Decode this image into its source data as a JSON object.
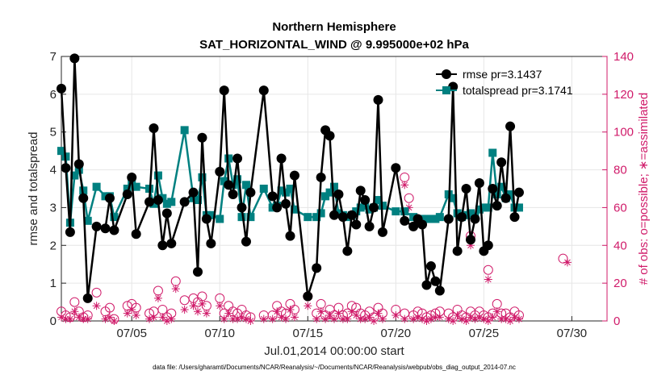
{
  "colors": {
    "rmse": "#000000",
    "spread": "#008080",
    "obs": "#d01b6a",
    "grid": "#e6e6e6",
    "axis": "#262626"
  },
  "chart_data": {
    "type": "line",
    "title_line1": "Northern Hemisphere",
    "title_line2": "SAT_HORIZONTAL_WIND @ 9.995000e+02 hPa",
    "xlabel": "Jul.01,2014 00:00:00 start",
    "ylabel_left": "rmse and totalspread",
    "ylabel_right": "# of obs: o=possible; ∗=assimilated",
    "footnote": "data file: /Users/gharamti/Documents/NCAR/Reanalysis/~/Documents/NCAR/Reanalysis/webpub/obs_diag_output_2014-07.nc",
    "xlim": [
      1.0,
      32.0
    ],
    "ylim_left": [
      0,
      7
    ],
    "ylim_right": [
      0,
      140
    ],
    "x_ticks": [
      5,
      10,
      15,
      20,
      25,
      30
    ],
    "x_tick_labels": [
      "07/05",
      "07/10",
      "07/15",
      "07/20",
      "07/25",
      "07/30"
    ],
    "y_ticks_left": [
      "0",
      "1",
      "2",
      "3",
      "4",
      "5",
      "6",
      "7"
    ],
    "y_ticks_right": [
      "0",
      "20",
      "40",
      "60",
      "80",
      "100",
      "120",
      "140"
    ],
    "legend": {
      "rmse_label": "rmse pr=3.1437",
      "spread_label": "totalspread pr=3.1741",
      "location": "top-right"
    },
    "rmse": [
      [
        1.0,
        6.15
      ],
      [
        1.25,
        4.05
      ],
      [
        1.5,
        2.35
      ],
      [
        1.75,
        6.95
      ],
      [
        2.0,
        4.15
      ],
      [
        2.25,
        3.25
      ],
      [
        2.5,
        0.6
      ],
      [
        3.0,
        2.5
      ],
      [
        3.5,
        2.45
      ],
      [
        3.75,
        3.25
      ],
      [
        4.0,
        2.4
      ],
      [
        4.75,
        3.35
      ],
      [
        5.0,
        3.8
      ],
      [
        5.25,
        2.3
      ],
      [
        6.0,
        3.15
      ],
      [
        6.25,
        5.1
      ],
      [
        6.5,
        3.2
      ],
      [
        6.75,
        2.0
      ],
      [
        7.0,
        2.85
      ],
      [
        7.25,
        2.05
      ],
      [
        8.0,
        3.15
      ],
      [
        8.5,
        3.4
      ],
      [
        8.75,
        1.3
      ],
      [
        9.0,
        4.85
      ],
      [
        9.25,
        2.7
      ],
      [
        9.5,
        2.05
      ],
      [
        10.0,
        3.95
      ],
      [
        10.25,
        6.1
      ],
      [
        10.5,
        3.6
      ],
      [
        10.75,
        3.35
      ],
      [
        11.0,
        4.3
      ],
      [
        11.25,
        3.0
      ],
      [
        11.5,
        2.1
      ],
      [
        11.75,
        3.4
      ],
      [
        12.5,
        6.1
      ],
      [
        13.0,
        3.3
      ],
      [
        13.25,
        3.0
      ],
      [
        13.5,
        4.3
      ],
      [
        13.75,
        3.1
      ],
      [
        14.0,
        2.25
      ],
      [
        14.25,
        3.85
      ],
      [
        15.0,
        0.65
      ],
      [
        15.5,
        1.4
      ],
      [
        15.75,
        3.8
      ],
      [
        16.0,
        5.05
      ],
      [
        16.25,
        4.9
      ],
      [
        16.5,
        2.8
      ],
      [
        16.75,
        3.35
      ],
      [
        17.0,
        2.75
      ],
      [
        17.25,
        1.85
      ],
      [
        17.5,
        2.8
      ],
      [
        17.75,
        2.55
      ],
      [
        18.0,
        3.45
      ],
      [
        18.25,
        3.2
      ],
      [
        18.5,
        2.5
      ],
      [
        18.75,
        3.0
      ],
      [
        19.0,
        5.85
      ],
      [
        19.25,
        2.35
      ],
      [
        20.0,
        4.05
      ],
      [
        20.5,
        2.65
      ],
      [
        21.0,
        2.5
      ],
      [
        21.25,
        2.7
      ],
      [
        21.5,
        2.55
      ],
      [
        21.75,
        0.95
      ],
      [
        22.0,
        1.45
      ],
      [
        22.25,
        1.05
      ],
      [
        22.5,
        0.8
      ],
      [
        23.0,
        2.7
      ],
      [
        23.25,
        6.2
      ],
      [
        23.5,
        1.85
      ],
      [
        23.75,
        2.75
      ],
      [
        24.0,
        3.5
      ],
      [
        24.25,
        2.15
      ],
      [
        24.5,
        2.7
      ],
      [
        24.75,
        3.65
      ],
      [
        25.0,
        1.85
      ],
      [
        25.25,
        2.0
      ],
      [
        25.5,
        3.5
      ],
      [
        25.75,
        3.05
      ],
      [
        26.0,
        4.2
      ],
      [
        26.25,
        3.25
      ],
      [
        26.5,
        5.15
      ],
      [
        26.75,
        2.75
      ],
      [
        27.0,
        3.4
      ]
    ],
    "totalspread": [
      [
        1.0,
        4.5
      ],
      [
        1.25,
        4.35
      ],
      [
        1.5,
        2.6
      ],
      [
        1.75,
        3.85
      ],
      [
        2.0,
        4.0
      ],
      [
        2.25,
        3.45
      ],
      [
        2.5,
        2.65
      ],
      [
        3.0,
        3.55
      ],
      [
        3.5,
        3.3
      ],
      [
        3.75,
        3.3
      ],
      [
        4.0,
        2.75
      ],
      [
        4.75,
        3.5
      ],
      [
        5.0,
        3.7
      ],
      [
        5.25,
        3.55
      ],
      [
        6.0,
        3.5
      ],
      [
        6.25,
        3.1
      ],
      [
        6.5,
        3.85
      ],
      [
        6.75,
        3.25
      ],
      [
        7.0,
        3.1
      ],
      [
        7.25,
        3.15
      ],
      [
        8.0,
        5.05
      ],
      [
        8.5,
        3.25
      ],
      [
        8.75,
        3.2
      ],
      [
        9.0,
        3.8
      ],
      [
        9.25,
        2.8
      ],
      [
        9.5,
        2.8
      ],
      [
        10.0,
        2.7
      ],
      [
        10.25,
        3.7
      ],
      [
        10.5,
        4.3
      ],
      [
        10.75,
        3.6
      ],
      [
        11.0,
        3.75
      ],
      [
        11.25,
        2.75
      ],
      [
        11.5,
        3.6
      ],
      [
        11.75,
        2.75
      ],
      [
        12.5,
        3.5
      ],
      [
        13.0,
        3.0
      ],
      [
        13.25,
        3.05
      ],
      [
        13.5,
        3.45
      ],
      [
        13.75,
        3.4
      ],
      [
        14.0,
        3.5
      ],
      [
        14.25,
        2.95
      ],
      [
        15.0,
        2.75
      ],
      [
        15.5,
        2.75
      ],
      [
        15.75,
        2.85
      ],
      [
        16.0,
        3.3
      ],
      [
        16.25,
        3.4
      ],
      [
        16.5,
        3.55
      ],
      [
        16.75,
        2.85
      ],
      [
        17.0,
        2.8
      ],
      [
        17.25,
        2.75
      ],
      [
        17.5,
        2.8
      ],
      [
        17.75,
        2.9
      ],
      [
        18.0,
        3.0
      ],
      [
        18.25,
        3.05
      ],
      [
        18.5,
        2.95
      ],
      [
        18.75,
        3.0
      ],
      [
        19.0,
        3.2
      ],
      [
        19.25,
        3.05
      ],
      [
        20.0,
        2.9
      ],
      [
        20.5,
        2.9
      ],
      [
        21.0,
        2.75
      ],
      [
        21.25,
        2.6
      ],
      [
        21.5,
        2.7
      ],
      [
        21.75,
        2.7
      ],
      [
        22.0,
        2.7
      ],
      [
        22.25,
        2.7
      ],
      [
        22.5,
        2.75
      ],
      [
        23.0,
        3.35
      ],
      [
        23.25,
        3.25
      ],
      [
        23.5,
        2.85
      ],
      [
        23.75,
        2.75
      ],
      [
        24.0,
        2.8
      ],
      [
        24.25,
        2.85
      ],
      [
        24.5,
        2.75
      ],
      [
        24.75,
        2.95
      ],
      [
        25.0,
        3.0
      ],
      [
        25.25,
        3.0
      ],
      [
        25.5,
        4.45
      ],
      [
        25.75,
        3.35
      ],
      [
        26.0,
        3.55
      ],
      [
        26.25,
        3.25
      ],
      [
        26.5,
        3.35
      ],
      [
        26.75,
        3.0
      ],
      [
        27.0,
        3.0
      ]
    ],
    "obs_possible": [
      [
        1.0,
        5
      ],
      [
        1.25,
        3
      ],
      [
        1.5,
        2
      ],
      [
        1.75,
        10
      ],
      [
        2.0,
        5
      ],
      [
        2.25,
        2
      ],
      [
        2.5,
        3
      ],
      [
        3.0,
        15
      ],
      [
        3.5,
        5
      ],
      [
        3.75,
        7
      ],
      [
        4.0,
        1
      ],
      [
        4.75,
        8
      ],
      [
        5.0,
        9
      ],
      [
        5.25,
        7
      ],
      [
        6.0,
        4
      ],
      [
        6.25,
        5
      ],
      [
        6.5,
        16
      ],
      [
        6.75,
        6
      ],
      [
        7.0,
        2
      ],
      [
        7.25,
        4
      ],
      [
        8.0,
        11
      ],
      [
        8.5,
        12
      ],
      [
        8.75,
        10
      ],
      [
        9.0,
        13
      ],
      [
        9.25,
        8
      ],
      [
        10.0,
        12
      ],
      [
        10.25,
        4
      ],
      [
        10.5,
        8
      ],
      [
        10.75,
        5
      ],
      [
        11.0,
        4
      ],
      [
        11.25,
        6
      ],
      [
        11.5,
        3
      ],
      [
        11.75,
        2
      ],
      [
        12.5,
        3
      ],
      [
        13.0,
        3
      ],
      [
        13.25,
        8
      ],
      [
        13.5,
        5
      ],
      [
        13.75,
        4
      ],
      [
        14.0,
        9
      ],
      [
        14.25,
        6
      ],
      [
        15.0,
        13
      ],
      [
        15.5,
        4
      ],
      [
        15.75,
        9
      ],
      [
        16.0,
        3
      ],
      [
        16.25,
        6
      ],
      [
        16.5,
        3
      ],
      [
        16.75,
        7
      ],
      [
        17.0,
        3
      ],
      [
        17.25,
        4
      ],
      [
        17.5,
        8
      ],
      [
        17.75,
        7
      ],
      [
        18.0,
        4
      ],
      [
        18.25,
        3
      ],
      [
        18.5,
        5
      ],
      [
        18.75,
        2
      ],
      [
        19.0,
        7
      ],
      [
        19.25,
        4
      ],
      [
        20.0,
        6
      ],
      [
        20.5,
        4
      ],
      [
        21.0,
        3
      ],
      [
        21.25,
        5
      ],
      [
        21.5,
        4
      ],
      [
        21.75,
        2
      ],
      [
        22.0,
        3
      ],
      [
        22.25,
        4
      ],
      [
        22.5,
        5
      ],
      [
        23.0,
        4
      ],
      [
        23.25,
        2
      ],
      [
        23.5,
        6
      ],
      [
        23.75,
        3
      ],
      [
        24.0,
        2
      ],
      [
        24.25,
        5
      ],
      [
        24.5,
        3
      ],
      [
        24.75,
        5
      ],
      [
        25.0,
        3
      ],
      [
        25.25,
        2
      ],
      [
        25.5,
        4
      ],
      [
        25.75,
        9
      ],
      [
        26.0,
        4
      ],
      [
        26.25,
        4
      ],
      [
        26.5,
        2
      ],
      [
        26.75,
        5
      ],
      [
        27.0,
        3
      ]
    ],
    "obs_assimilated": [
      [
        1.0,
        2
      ],
      [
        1.25,
        1
      ],
      [
        1.5,
        1
      ],
      [
        1.75,
        5
      ],
      [
        2.0,
        2
      ],
      [
        2.25,
        1
      ],
      [
        2.5,
        1
      ],
      [
        3.0,
        8
      ],
      [
        3.5,
        1
      ],
      [
        3.75,
        2
      ],
      [
        4.0,
        0
      ],
      [
        4.75,
        4
      ],
      [
        5.0,
        6
      ],
      [
        5.25,
        3
      ],
      [
        6.0,
        1
      ],
      [
        6.25,
        2
      ],
      [
        6.5,
        12
      ],
      [
        6.75,
        2
      ],
      [
        7.0,
        0
      ],
      [
        7.25,
        1
      ],
      [
        8.0,
        6
      ],
      [
        8.5,
        8
      ],
      [
        8.75,
        5
      ],
      [
        9.0,
        9
      ],
      [
        9.25,
        4
      ],
      [
        10.0,
        8
      ],
      [
        10.25,
        1
      ],
      [
        10.5,
        4
      ],
      [
        10.75,
        1
      ],
      [
        11.0,
        1
      ],
      [
        11.25,
        2
      ],
      [
        11.5,
        1
      ],
      [
        11.75,
        0
      ],
      [
        12.5,
        1
      ],
      [
        13.0,
        1
      ],
      [
        13.25,
        5
      ],
      [
        13.5,
        2
      ],
      [
        13.75,
        1
      ],
      [
        14.0,
        6
      ],
      [
        14.25,
        2
      ],
      [
        15.0,
        8
      ],
      [
        15.5,
        1
      ],
      [
        15.75,
        5
      ],
      [
        16.0,
        1
      ],
      [
        16.25,
        3
      ],
      [
        16.5,
        1
      ],
      [
        16.75,
        4
      ],
      [
        17.0,
        1
      ],
      [
        17.25,
        1
      ],
      [
        17.5,
        5
      ],
      [
        17.75,
        3
      ],
      [
        18.0,
        1
      ],
      [
        18.25,
        1
      ],
      [
        18.5,
        2
      ],
      [
        18.75,
        0
      ],
      [
        19.0,
        4
      ],
      [
        19.25,
        1
      ],
      [
        20.0,
        3
      ],
      [
        20.5,
        1
      ],
      [
        21.0,
        1
      ],
      [
        21.25,
        2
      ],
      [
        21.5,
        1
      ],
      [
        21.75,
        0
      ],
      [
        22.0,
        1
      ],
      [
        22.25,
        2
      ],
      [
        22.5,
        2
      ],
      [
        23.0,
        1
      ],
      [
        23.25,
        0
      ],
      [
        23.5,
        3
      ],
      [
        23.75,
        1
      ],
      [
        24.0,
        0
      ],
      [
        24.25,
        2
      ],
      [
        24.5,
        1
      ],
      [
        24.75,
        2
      ],
      [
        25.0,
        1
      ],
      [
        25.25,
        0
      ],
      [
        25.5,
        2
      ],
      [
        25.75,
        5
      ],
      [
        26.0,
        1
      ],
      [
        26.25,
        1
      ],
      [
        26.5,
        0
      ],
      [
        26.75,
        2
      ],
      [
        27.0,
        1
      ]
    ],
    "obs_outliers_possible": [
      [
        20.5,
        76
      ],
      [
        20.75,
        65
      ],
      [
        24.25,
        45
      ],
      [
        25.25,
        27
      ],
      [
        29.5,
        33
      ],
      [
        7.5,
        21
      ]
    ],
    "obs_outliers_assimilated": [
      [
        20.5,
        72
      ],
      [
        20.75,
        60
      ],
      [
        24.25,
        40
      ],
      [
        25.25,
        22
      ],
      [
        29.75,
        31
      ],
      [
        7.5,
        17
      ]
    ]
  }
}
